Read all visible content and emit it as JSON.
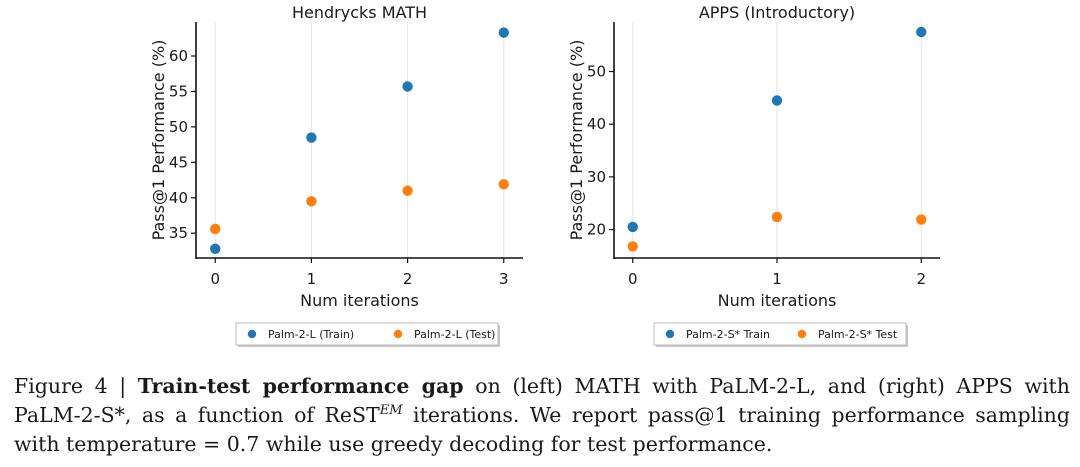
{
  "chart_data": [
    {
      "type": "scatter",
      "title": "Hendrycks MATH",
      "xlabel": "Num iterations",
      "ylabel": "Pass@1 Performance (%)",
      "x": [
        0,
        1,
        2,
        3
      ],
      "xticks": [
        "0",
        "1",
        "2",
        "3"
      ],
      "xlim": [
        -0.2,
        3.2
      ],
      "yticks": [
        35,
        40,
        45,
        50,
        55,
        60
      ],
      "ylim": [
        31.5,
        64.8
      ],
      "grid": "vertical",
      "legend": "bottom-center",
      "series": [
        {
          "name": "Palm-2-L (Train)",
          "color": "#1f77b4",
          "values": [
            32.8,
            48.5,
            55.7,
            63.3
          ]
        },
        {
          "name": "Palm-2-L (Test)",
          "color": "#ff7f0e",
          "values": [
            35.6,
            39.5,
            41.0,
            41.9
          ]
        }
      ]
    },
    {
      "type": "scatter",
      "title": "APPS (Introductory)",
      "xlabel": "Num iterations",
      "ylabel": "Pass@1 Performance (%)",
      "x": [
        0,
        1,
        2
      ],
      "xticks": [
        "0",
        "1",
        "2"
      ],
      "xlim": [
        -0.13,
        2.13
      ],
      "yticks": [
        20,
        30,
        40,
        50
      ],
      "ylim": [
        14.6,
        59.4
      ],
      "grid": "vertical",
      "legend": "bottom-center",
      "series": [
        {
          "name": "Palm-2-S* Train",
          "color": "#1f77b4",
          "values": [
            20.5,
            44.5,
            57.5
          ]
        },
        {
          "name": "Palm-2-S* Test",
          "color": "#ff7f0e",
          "values": [
            16.8,
            22.4,
            21.9
          ]
        }
      ]
    }
  ],
  "caption": {
    "prefix": "Figure 4 | ",
    "bold": "Train-test performance gap",
    "part1": " on (left) MATH with PaLM-2-L, and (right) APPS with PaLM-2-S*, as a function of ReST",
    "superscript": "EM",
    "part2": " iterations. We report pass@1 training performance sampling with temperature = 0.7 while use greedy decoding for test performance."
  }
}
